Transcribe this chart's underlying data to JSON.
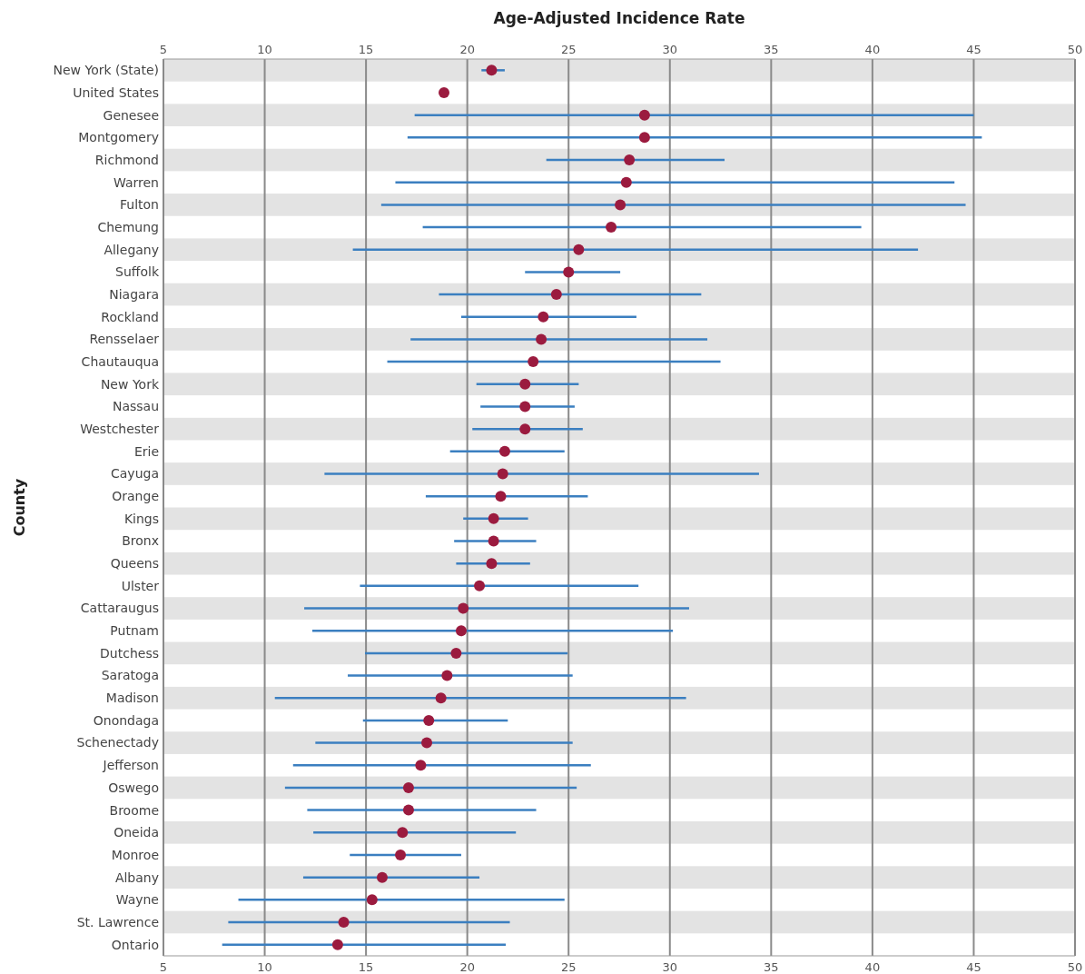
{
  "chart_data": {
    "type": "scatter",
    "orientation": "horizontal",
    "x2label": "Age-Adjusted Incidence Rate",
    "ylabel": "County",
    "categories": [
      "New York (State)",
      "United States",
      "Genesee",
      "Montgomery",
      "Richmond",
      "Warren",
      "Fulton",
      "Chemung",
      "Allegany",
      "Suffolk",
      "Niagara",
      "Rockland",
      "Rensselaer",
      "Chautauqua",
      "New York",
      "Nassau",
      "Westchester",
      "Erie",
      "Cayuga",
      "Orange",
      "Kings",
      "Bronx",
      "Queens",
      "Ulster",
      "Cattaraugus",
      "Putnam",
      "Dutchess",
      "Saratoga",
      "Madison",
      "Onondaga",
      "Schenectady",
      "Jefferson",
      "Oswego",
      "Broome",
      "Oneida",
      "Monroe",
      "Albany",
      "Wayne",
      "St. Lawrence",
      "Ontario"
    ],
    "series": [
      {
        "color": "#9b1b3f",
        "values": [
          21.2,
          18.85,
          28.75,
          28.75,
          28.0,
          27.85,
          27.55,
          27.1,
          25.5,
          25.0,
          24.4,
          23.75,
          23.65,
          23.25,
          22.85,
          22.85,
          22.85,
          21.85,
          21.75,
          21.65,
          21.3,
          21.3,
          21.2,
          20.6,
          19.8,
          19.7,
          19.45,
          19.0,
          18.7,
          18.1,
          18.0,
          17.7,
          17.1,
          17.1,
          16.8,
          16.7,
          15.8,
          15.3,
          13.9,
          13.6
        ],
        "errors": [
          [
            20.7,
            21.85
          ],
          null,
          [
            17.4,
            45.0
          ],
          [
            17.05,
            45.4
          ],
          [
            23.9,
            32.7
          ],
          [
            16.45,
            44.05
          ],
          [
            15.75,
            44.6
          ],
          [
            17.8,
            39.45
          ],
          [
            14.35,
            42.25
          ],
          [
            22.85,
            27.55
          ],
          [
            18.6,
            31.55
          ],
          [
            19.7,
            28.35
          ],
          [
            17.2,
            31.85
          ],
          [
            16.05,
            32.5
          ],
          [
            20.45,
            25.5
          ],
          [
            20.65,
            25.3
          ],
          [
            20.25,
            25.7
          ],
          [
            19.15,
            24.8
          ],
          [
            12.95,
            34.4
          ],
          [
            17.95,
            25.95
          ],
          [
            19.8,
            23.0
          ],
          [
            19.35,
            23.4
          ],
          [
            19.45,
            23.1
          ],
          [
            14.7,
            28.45
          ],
          [
            11.95,
            30.95
          ],
          [
            12.35,
            30.15
          ],
          [
            14.95,
            24.95
          ],
          [
            14.1,
            25.2
          ],
          [
            10.5,
            30.8
          ],
          [
            14.85,
            22.0
          ],
          [
            12.5,
            25.2
          ],
          [
            11.4,
            26.1
          ],
          [
            11.0,
            25.4
          ],
          [
            12.1,
            23.4
          ],
          [
            12.4,
            22.4
          ],
          [
            14.2,
            19.7
          ],
          [
            11.9,
            20.6
          ],
          [
            8.7,
            24.8
          ],
          [
            8.2,
            22.1
          ],
          [
            7.9,
            21.9
          ]
        ]
      }
    ],
    "xlim": [
      5,
      50
    ],
    "xticks": [
      5,
      10,
      15,
      20,
      25,
      30,
      35,
      40,
      45,
      50
    ],
    "x2lim": [
      5,
      50
    ],
    "x2ticks": [
      5,
      10,
      15,
      20,
      25,
      30,
      35,
      40,
      45,
      50
    ],
    "grid": "x",
    "marker": "circle"
  }
}
